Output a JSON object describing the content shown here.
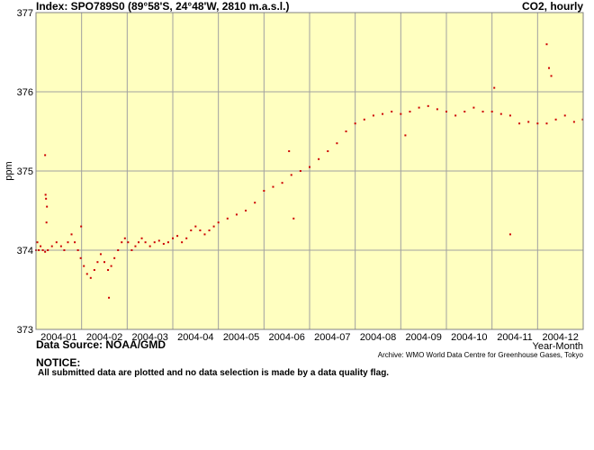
{
  "header": {
    "left_title": "Index: SPO789S0 (89°58'S, 24°48'W, 2810 m.a.s.l.)",
    "right_title": "CO2, hourly"
  },
  "footer": {
    "data_source": "Data Source: NOAA/GMD",
    "archive": "Archive: WMO World Data Centre for Greenhouse Gases, Tokyo",
    "notice_heading": "NOTICE:",
    "notice_text": "All submitted data are plotted and no data selection is made by a data quality flag."
  },
  "colors": {
    "plot_bg": "#ffffc0",
    "grid": "#a0a0a0",
    "series": "#cc0000"
  },
  "chart_data": {
    "type": "scatter",
    "xlabel": "Year-Month",
    "ylabel": "ppm",
    "ylim": [
      373,
      377
    ],
    "yticks": [
      "373",
      "374",
      "375",
      "376",
      "377"
    ],
    "x_tick_labels": [
      "2004-01",
      "2004-02",
      "2004-03",
      "2004-04",
      "2004-05",
      "2004-06",
      "2004-07",
      "2004-08",
      "2004-09",
      "2004-10",
      "2004-11",
      "2004-12"
    ],
    "grid": true,
    "series": [
      {
        "x_unit": "month (fractional, 2004)",
        "x": [
          0.0,
          0.03,
          0.06,
          0.1,
          0.15,
          0.2,
          0.26,
          0.35,
          0.45,
          0.55,
          0.62,
          0.7,
          0.78,
          0.85,
          0.92,
          0.98,
          1.05,
          1.12,
          1.2,
          1.28,
          1.35,
          1.42,
          1.5,
          1.58,
          1.65,
          1.72,
          1.8,
          1.88,
          1.95,
          2.02,
          2.1,
          2.18,
          2.25,
          2.32,
          2.4,
          2.5,
          2.6,
          2.7,
          2.8,
          2.9,
          3.0,
          3.1,
          3.2,
          3.3,
          3.4,
          3.5,
          3.6,
          3.7,
          3.8,
          3.9,
          4.0,
          4.2,
          4.4,
          4.6,
          4.8,
          5.0,
          5.2,
          5.4,
          5.6,
          5.8,
          6.0,
          6.2,
          6.4,
          6.6,
          6.8,
          7.0,
          7.2,
          7.4,
          7.6,
          7.8,
          8.0,
          8.2,
          8.4,
          8.6,
          8.8,
          9.0,
          9.2,
          9.4,
          9.6,
          9.8,
          10.0,
          10.2,
          10.4,
          10.6,
          10.8,
          11.0,
          11.2,
          11.4,
          11.6,
          11.8,
          11.99
        ],
        "y": [
          374.0,
          374.1,
          374.0,
          374.05,
          374.0,
          373.98,
          374.0,
          374.05,
          374.1,
          374.05,
          374.0,
          374.1,
          374.2,
          374.1,
          374.0,
          373.9,
          373.8,
          373.7,
          373.65,
          373.75,
          373.85,
          373.95,
          373.85,
          373.75,
          373.8,
          373.9,
          374.0,
          374.1,
          374.15,
          374.1,
          374.0,
          374.05,
          374.1,
          374.15,
          374.1,
          374.05,
          374.1,
          374.12,
          374.08,
          374.1,
          374.15,
          374.18,
          374.1,
          374.15,
          374.25,
          374.3,
          374.25,
          374.2,
          374.25,
          374.3,
          374.35,
          374.4,
          374.45,
          374.5,
          374.6,
          374.75,
          374.8,
          374.85,
          374.95,
          375.0,
          375.05,
          375.15,
          375.25,
          375.35,
          375.5,
          375.6,
          375.65,
          375.7,
          375.72,
          375.75,
          375.72,
          375.75,
          375.8,
          375.82,
          375.78,
          375.75,
          375.7,
          375.75,
          375.8,
          375.75,
          375.75,
          375.72,
          375.7,
          375.6,
          375.62,
          375.6,
          375.6,
          375.65,
          375.7,
          375.62,
          375.65
        ],
        "outliers_x": [
          0.2,
          0.21,
          0.22,
          0.23,
          0.24,
          0.99,
          1.6,
          5.55,
          5.65,
          8.1,
          10.05,
          10.4,
          11.2,
          11.25,
          11.3
        ],
        "outliers_y": [
          375.2,
          374.7,
          374.65,
          374.35,
          374.55,
          374.3,
          373.4,
          375.25,
          374.4,
          375.45,
          376.05,
          374.2,
          376.6,
          376.3,
          376.2
        ]
      }
    ]
  }
}
